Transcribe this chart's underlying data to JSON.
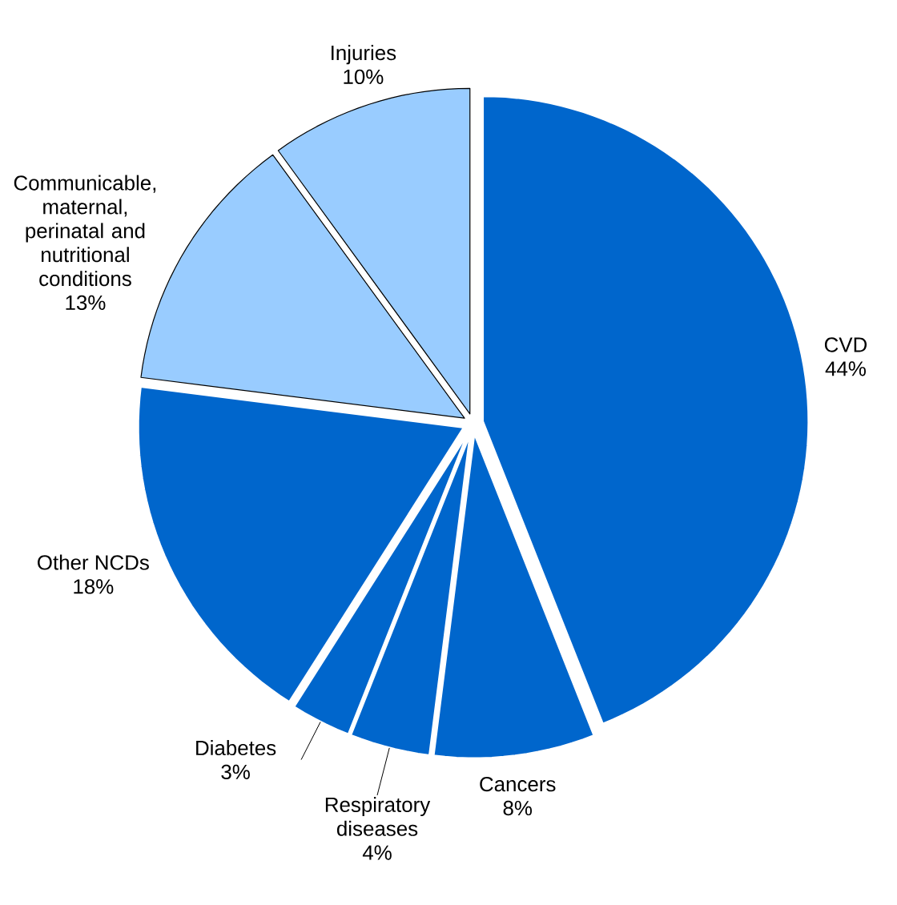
{
  "chart_data": {
    "type": "pie",
    "categories": [
      "CVD",
      "Cancers",
      "Respiratory diseases",
      "Diabetes",
      "Other NCDs",
      "Communicable, maternal, perinatal and nutritional conditions",
      "Injuries"
    ],
    "values": [
      44,
      8,
      4,
      3,
      18,
      13,
      10
    ],
    "value_labels": [
      "44%",
      "8%",
      "4%",
      "3%",
      "18%",
      "13%",
      "10%"
    ],
    "colors": [
      "#0066cc",
      "#0066cc",
      "#0066cc",
      "#0066cc",
      "#0066cc",
      "#99ccff",
      "#99ccff"
    ]
  }
}
